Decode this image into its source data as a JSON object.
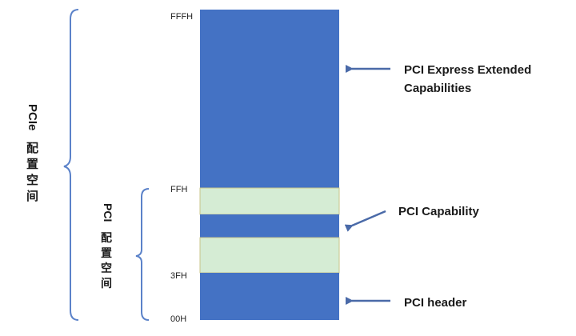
{
  "address_labels": {
    "top": "FFFH",
    "pci_top": "FFH",
    "header_top": "3FH",
    "bottom": "00H"
  },
  "callouts": {
    "extended_line1": "PCI Express Extended",
    "extended_line2": "Capabilities",
    "capability": "PCI Capability",
    "header": "PCI header"
  },
  "brackets": {
    "pcie_label_latin": "PCIe",
    "pcie_label_cjk": [
      "配",
      "置",
      "空",
      "间"
    ],
    "pci_label_latin": "PCI",
    "pci_label_cjk": [
      "配",
      "置",
      "空",
      "间"
    ]
  },
  "colors": {
    "block_blue": "#4472c4",
    "capability_green": "#d5ecd4",
    "green_border": "#c9c48a",
    "arrow": "#4a6aa8",
    "bracket": "#5b82c9"
  }
}
